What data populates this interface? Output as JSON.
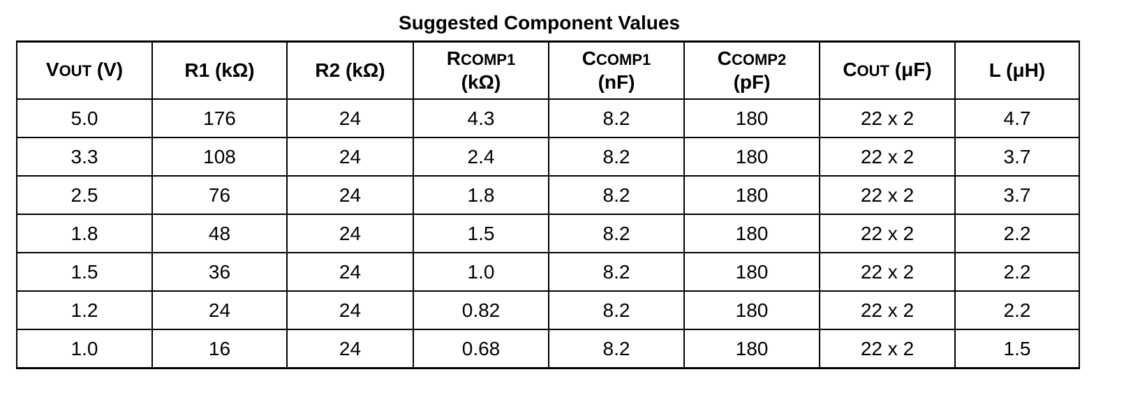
{
  "title": "Suggested Component Values",
  "table": {
    "headers": [
      {
        "main": "V",
        "sub": "OUT",
        "rest": " (V)",
        "line2": ""
      },
      {
        "main": "R1 (kΩ)",
        "sub": "",
        "rest": "",
        "line2": ""
      },
      {
        "main": "R2 (kΩ)",
        "sub": "",
        "rest": "",
        "line2": ""
      },
      {
        "main": "R",
        "sub": "COMP1",
        "rest": "",
        "line2": "(kΩ)"
      },
      {
        "main": "C",
        "sub": "COMP1",
        "rest": "",
        "line2": "(nF)"
      },
      {
        "main": "C",
        "sub": "COMP2",
        "rest": "",
        "line2": "(pF)"
      },
      {
        "main": "C",
        "sub": "OUT",
        "rest": " (μF)",
        "line2": ""
      },
      {
        "main": "L (μH)",
        "sub": "",
        "rest": "",
        "line2": ""
      }
    ],
    "rows": [
      [
        "5.0",
        "176",
        "24",
        "4.3",
        "8.2",
        "180",
        "22 x 2",
        "4.7"
      ],
      [
        "3.3",
        "108",
        "24",
        "2.4",
        "8.2",
        "180",
        "22 x 2",
        "3.7"
      ],
      [
        "2.5",
        "76",
        "24",
        "1.8",
        "8.2",
        "180",
        "22 x 2",
        "3.7"
      ],
      [
        "1.8",
        "48",
        "24",
        "1.5",
        "8.2",
        "180",
        "22 x 2",
        "2.2"
      ],
      [
        "1.5",
        "36",
        "24",
        "1.0",
        "8.2",
        "180",
        "22 x 2",
        "2.2"
      ],
      [
        "1.2",
        "24",
        "24",
        "0.82",
        "8.2",
        "180",
        "22 x 2",
        "2.2"
      ],
      [
        "1.0",
        "16",
        "24",
        "0.68",
        "8.2",
        "180",
        "22 x 2",
        "1.5"
      ]
    ]
  }
}
